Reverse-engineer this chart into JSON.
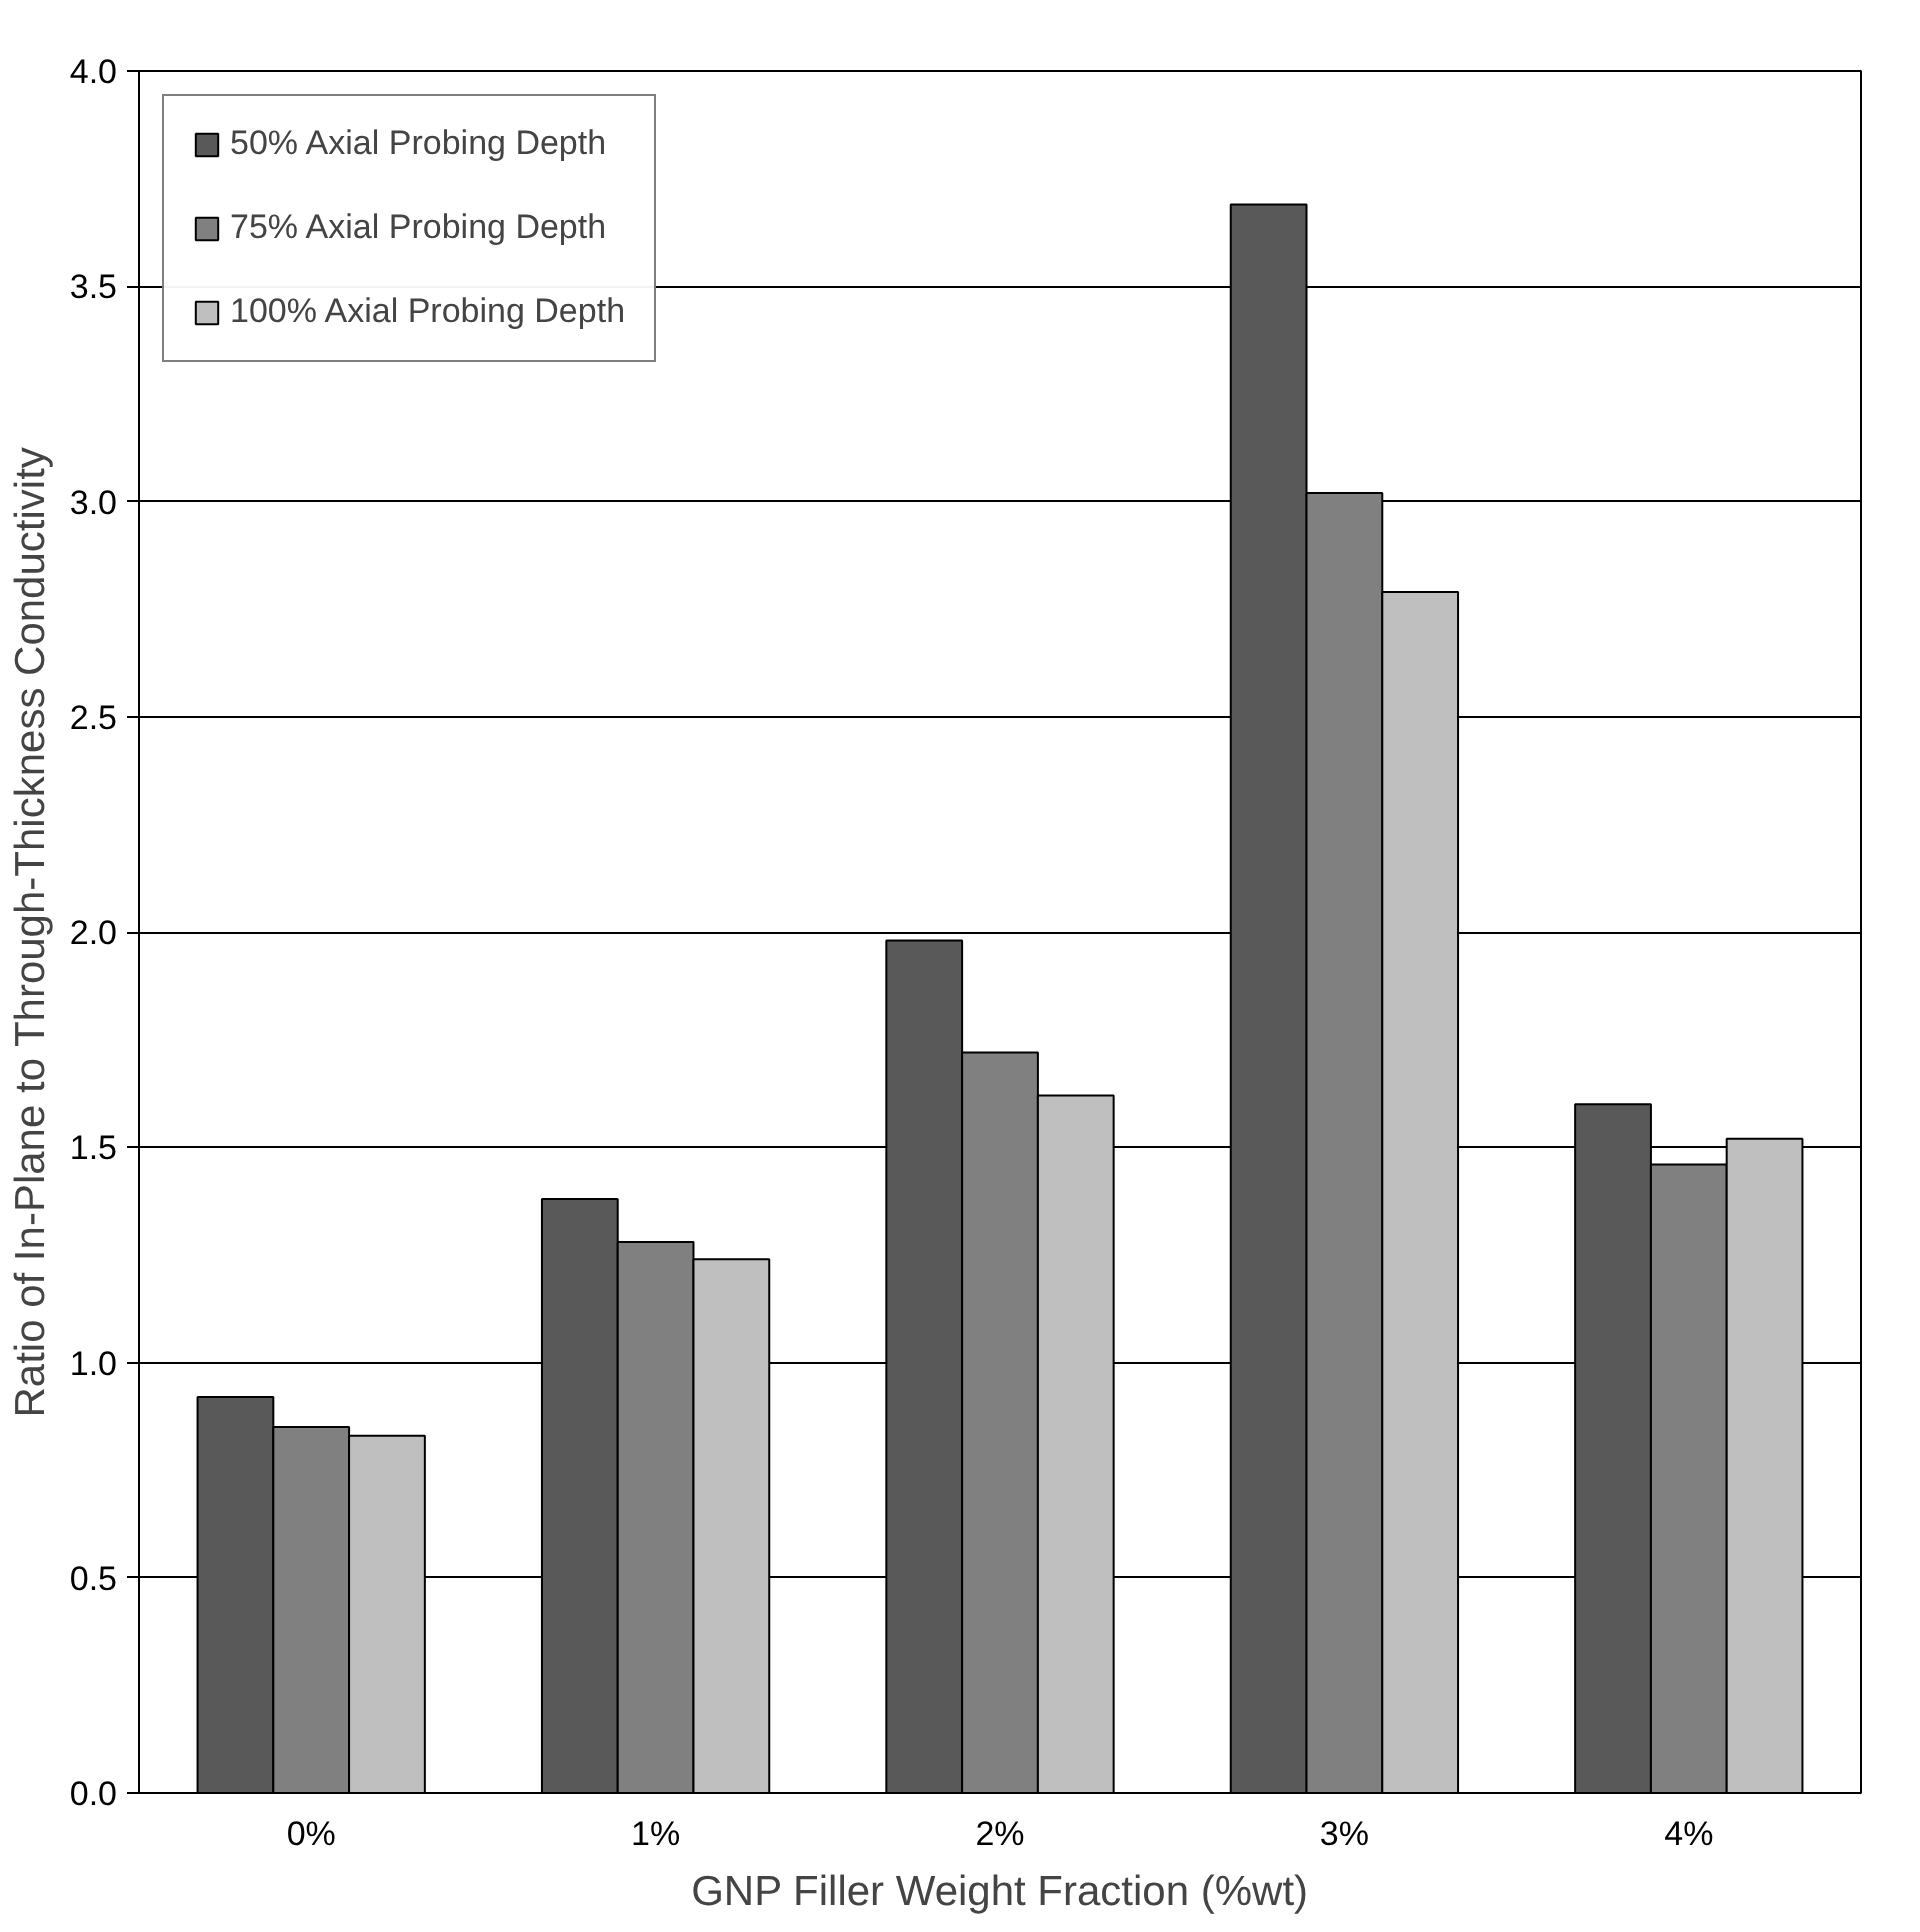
{
  "chart_data": {
    "type": "bar",
    "xlabel": "GNP Filler Weight Fraction (%wt)",
    "ylabel": "Ratio of In-Plane to Through-Thickness Conductivity",
    "categories": [
      "0%",
      "1%",
      "2%",
      "3%",
      "4%"
    ],
    "series": [
      {
        "name": "50% Axial Probing Depth",
        "color": "#595959",
        "values": [
          0.92,
          1.38,
          1.98,
          3.69,
          1.6
        ]
      },
      {
        "name": "75% Axial Probing Depth",
        "color": "#808080",
        "values": [
          0.85,
          1.28,
          1.72,
          3.02,
          1.46
        ]
      },
      {
        "name": "100% Axial Probing Depth",
        "color": "#bfbfbf",
        "values": [
          0.83,
          1.24,
          1.62,
          2.79,
          1.52
        ]
      }
    ],
    "ylim": [
      0,
      4
    ],
    "yticks": [
      {
        "value": 0,
        "label": "0.0"
      },
      {
        "value": 0.5,
        "label": "0.5"
      },
      {
        "value": 1,
        "label": "1.0"
      },
      {
        "value": 1.5,
        "label": "1.5"
      },
      {
        "value": 2,
        "label": "2.0"
      },
      {
        "value": 2.5,
        "label": "2.5"
      },
      {
        "value": 3,
        "label": "3.0"
      },
      {
        "value": 3.5,
        "label": "3.5"
      },
      {
        "value": 4,
        "label": "4.0"
      }
    ],
    "grid": "y",
    "legend": "top left"
  }
}
